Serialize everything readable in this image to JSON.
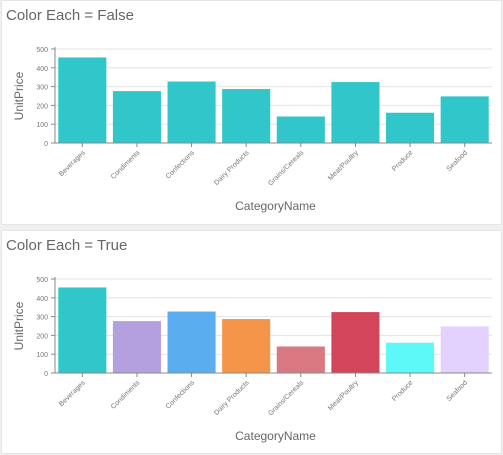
{
  "chart_data": [
    {
      "type": "bar",
      "title": "Color Each = False",
      "xlabel": "CategoryName",
      "ylabel": "UnitPrice",
      "ylim": [
        0,
        500
      ],
      "yticks": [
        0,
        100,
        200,
        300,
        400,
        500
      ],
      "grid": true,
      "categories": [
        "Beverages",
        "Condiments",
        "Confections",
        "Dairy Products",
        "Grains/Cereals",
        "Meat/Poultry",
        "Produce",
        "Seafood"
      ],
      "values": [
        455,
        276,
        327,
        287,
        141,
        324,
        161,
        248
      ],
      "colors": [
        "#30c6ca",
        "#30c6ca",
        "#30c6ca",
        "#30c6ca",
        "#30c6ca",
        "#30c6ca",
        "#30c6ca",
        "#30c6ca"
      ]
    },
    {
      "type": "bar",
      "title": "Color Each = True",
      "xlabel": "CategoryName",
      "ylabel": "UnitPrice",
      "ylim": [
        0,
        500
      ],
      "yticks": [
        0,
        100,
        200,
        300,
        400,
        500
      ],
      "grid": true,
      "categories": [
        "Beverages",
        "Condiments",
        "Confections",
        "Dairy Products",
        "Grains/Cereals",
        "Meat/Poultry",
        "Produce",
        "Seafood"
      ],
      "values": [
        455,
        276,
        327,
        287,
        141,
        324,
        161,
        248
      ],
      "colors": [
        "#30c6ca",
        "#b4a0de",
        "#5aaef0",
        "#f5954a",
        "#d97880",
        "#d2455a",
        "#5df8f8",
        "#e2d2fd"
      ]
    }
  ]
}
